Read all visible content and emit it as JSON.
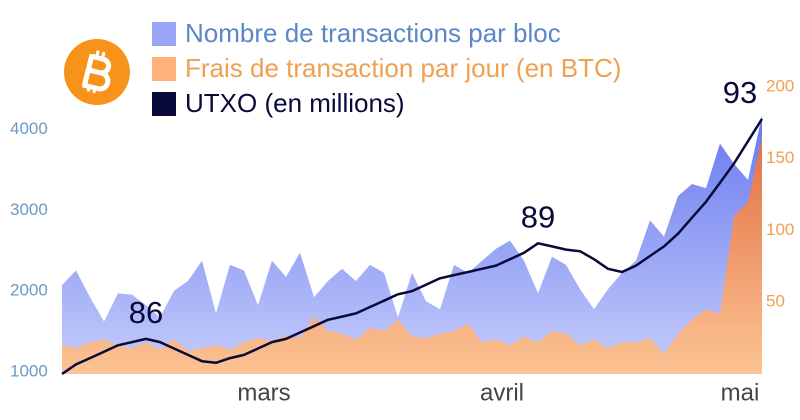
{
  "chart_data": {
    "type": "area",
    "categories": [
      null,
      null,
      null,
      null,
      null,
      null,
      null,
      null,
      null,
      null,
      null,
      null,
      null,
      null,
      "mars",
      null,
      null,
      null,
      null,
      null,
      null,
      null,
      null,
      null,
      null,
      null,
      null,
      null,
      null,
      null,
      null,
      "avril",
      null,
      null,
      null,
      null,
      null,
      null,
      null,
      null,
      null,
      null,
      null,
      null,
      null,
      null,
      null,
      null,
      "mai",
      null,
      null
    ],
    "series": [
      {
        "name": "Nombre de transactions par bloc",
        "color": "#9aa5f5",
        "axis": "y",
        "values": [
          2100,
          2280,
          1950,
          1650,
          2000,
          1980,
          1850,
          1700,
          2030,
          2150,
          2400,
          1750,
          2350,
          2280,
          1850,
          2400,
          2200,
          2500,
          1950,
          2150,
          2300,
          2150,
          2350,
          2250,
          1700,
          2250,
          1900,
          1800,
          2350,
          2250,
          2400,
          2550,
          2650,
          2400,
          2000,
          2450,
          2350,
          2050,
          1800,
          2050,
          2250,
          2400,
          2900,
          2700,
          3200,
          3350,
          3300,
          3850,
          3600,
          3400,
          4200
        ]
      },
      {
        "name": "Frais de transaction par jour (en BTC)",
        "color": "#ffb37a",
        "axis": "y2",
        "values": [
          20,
          18,
          22,
          24,
          20,
          18,
          22,
          17,
          24,
          16,
          18,
          20,
          17,
          22,
          25,
          23,
          27,
          25,
          40,
          30,
          28,
          24,
          32,
          30,
          38,
          26,
          25,
          28,
          30,
          35,
          22,
          24,
          20,
          26,
          22,
          30,
          28,
          20,
          24,
          18,
          22,
          22,
          25,
          14,
          28,
          38,
          45,
          42,
          110,
          120,
          165
        ]
      },
      {
        "name": "UTXO (en millions)",
        "color": "#0a0a3a",
        "axis": "y3",
        "type": "line",
        "values": [
          85.0,
          85.3,
          85.5,
          85.7,
          85.9,
          86.0,
          86.1,
          86.0,
          85.8,
          85.6,
          85.4,
          85.35,
          85.5,
          85.6,
          85.8,
          86.0,
          86.1,
          86.3,
          86.5,
          86.7,
          86.8,
          86.9,
          87.1,
          87.3,
          87.5,
          87.6,
          87.8,
          88.0,
          88.1,
          88.2,
          88.3,
          88.4,
          88.6,
          88.8,
          89.1,
          89.0,
          88.9,
          88.85,
          88.6,
          88.3,
          88.2,
          88.4,
          88.7,
          89.0,
          89.4,
          89.9,
          90.4,
          91.0,
          91.6,
          92.3,
          93.0
        ],
        "value_labels": [
          null,
          null,
          null,
          null,
          null,
          null,
          "86",
          null,
          null,
          null,
          null,
          null,
          null,
          null,
          null,
          null,
          null,
          null,
          null,
          null,
          null,
          null,
          null,
          null,
          null,
          null,
          null,
          null,
          null,
          null,
          null,
          null,
          null,
          null,
          "89",
          null,
          null,
          null,
          null,
          null,
          null,
          null,
          null,
          null,
          null,
          null,
          null,
          null,
          null,
          null,
          "93"
        ]
      }
    ],
    "ylim": [
      1000,
      4550
    ],
    "yticks": [
      1000,
      2000,
      3000,
      4000
    ],
    "y2lim": [
      0,
      200
    ],
    "y2ticks": [
      50,
      100,
      150,
      200
    ],
    "y3lim": [
      85,
      94
    ],
    "grid": false
  }
}
